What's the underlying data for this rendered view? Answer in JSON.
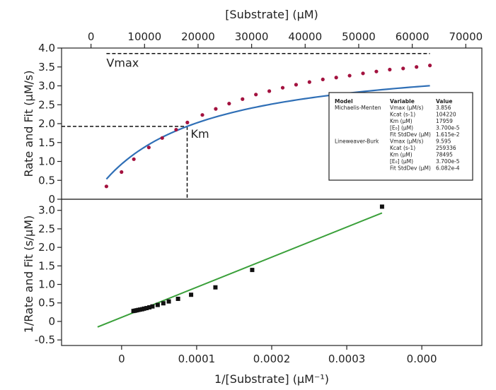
{
  "chart_data": [
    {
      "type": "scatter",
      "name": "michaelis-menten",
      "xlabel": "[Substrate] (µM)",
      "ylabel": "Rate and Fit (µM/s)",
      "xlim": [
        -5500,
        73000
      ],
      "ylim": [
        0,
        4.0
      ],
      "xticks": [
        0,
        10000,
        20000,
        30000,
        40000,
        50000,
        60000,
        70000
      ],
      "xtick_labels": [
        "0",
        "10000",
        "20000",
        "30000",
        "40000",
        "50000",
        "60000",
        "70000"
      ],
      "yticks": [
        0,
        0.5,
        1.0,
        1.5,
        2.0,
        2.5,
        3.0,
        3.5,
        4.0
      ],
      "ytick_labels": [
        "0",
        "0.5",
        "1.0",
        "1.5",
        "2.0",
        "2.5",
        "3.0",
        "3.5",
        "4.0"
      ],
      "grid": false,
      "point_color": "#a3123f",
      "fit_color": "#2f6fb6",
      "x": [
        2880,
        5700,
        8000,
        10800,
        13300,
        15900,
        18000,
        20800,
        23300,
        25800,
        28300,
        30800,
        33300,
        35800,
        38300,
        40800,
        43300,
        45800,
        48300,
        50800,
        53300,
        55800,
        58300,
        60800,
        63300
      ],
      "values": [
        0.34,
        0.72,
        1.06,
        1.37,
        1.62,
        1.84,
        2.03,
        2.23,
        2.39,
        2.53,
        2.65,
        2.77,
        2.86,
        2.95,
        3.03,
        3.1,
        3.17,
        3.22,
        3.27,
        3.33,
        3.38,
        3.43,
        3.46,
        3.5,
        3.54
      ],
      "fit": {
        "model": "michaelis-menten",
        "vmax": 3.856,
        "km": 17959,
        "x_range": [
          2880,
          63300
        ]
      },
      "reference_lines": [
        {
          "label": "Vmax",
          "kind": "horizontal",
          "y": 3.856,
          "x_range": [
            2880,
            63300
          ],
          "color": "#a3123f"
        },
        {
          "label": "Km",
          "kind": "crosshair",
          "x": 17959,
          "y": 1.928,
          "color": "#2a8a4a"
        }
      ],
      "table": {
        "headers": [
          "Model",
          "Variable",
          "Value"
        ],
        "rows": [
          [
            "Michaelis-Menten",
            "Vmax (µM/s)",
            "3.856"
          ],
          [
            "",
            "Kcat (s-1)",
            "104220"
          ],
          [
            "",
            "Km (µM)",
            "17959"
          ],
          [
            "",
            "[E₀] (µM)",
            "3.700e-5"
          ],
          [
            "",
            "Fit StdDev (µM)",
            "1.615e-2"
          ],
          [
            "Lineweaver-Burk",
            "Vmax (µM/s)",
            "9.595"
          ],
          [
            "",
            "Kcat (s-1)",
            "259336"
          ],
          [
            "",
            "Km (µM)",
            "78495"
          ],
          [
            "",
            "[E₀] (µM)",
            "3.700e-5"
          ],
          [
            "",
            "Fit StdDev (µM)",
            "6.082e-4"
          ]
        ]
      }
    },
    {
      "type": "scatter",
      "name": "lineweaver-burk",
      "xlabel": "1/[Substrate] (µM⁻¹)",
      "ylabel": "1/Rate and Fit (s/µM)",
      "xlim": [
        -8e-05,
        0.00048
      ],
      "ylim": [
        -0.65,
        3.3
      ],
      "xticks": [
        0,
        0.0001,
        0.0002,
        0.0003,
        0.0004
      ],
      "xtick_labels": [
        "0",
        "0.0001",
        "0.0002",
        "0.0003",
        "0.000"
      ],
      "yticks": [
        -0.5,
        0,
        0.5,
        1.0,
        1.5,
        2.0,
        2.5,
        3.0
      ],
      "ytick_labels": [
        "-0.5",
        "0",
        "0.5",
        "1.0",
        "1.5",
        "2.0",
        "2.5",
        "3.0"
      ],
      "grid": false,
      "point_color": "#111111",
      "fit_color": "#3aa03a",
      "x": [
        1.58e-05,
        1.79e-05,
        2e-05,
        2.23e-05,
        2.47e-05,
        2.74e-05,
        3e-05,
        3.33e-05,
        3.7e-05,
        4.11e-05,
        4.81e-05,
        5.56e-05,
        6.29e-05,
        7.52e-05,
        9.26e-05,
        0.000125,
        0.000174,
        0.000347
      ],
      "values": [
        0.282,
        0.29,
        0.3,
        0.31,
        0.32,
        0.33,
        0.345,
        0.36,
        0.38,
        0.405,
        0.445,
        0.49,
        0.54,
        0.61,
        0.72,
        0.92,
        1.39,
        3.1
      ],
      "fit": {
        "model": "linear",
        "x_range": [
          -3.2e-05,
          0.000347
        ],
        "y_range": [
          -0.15,
          2.93
        ]
      }
    }
  ]
}
